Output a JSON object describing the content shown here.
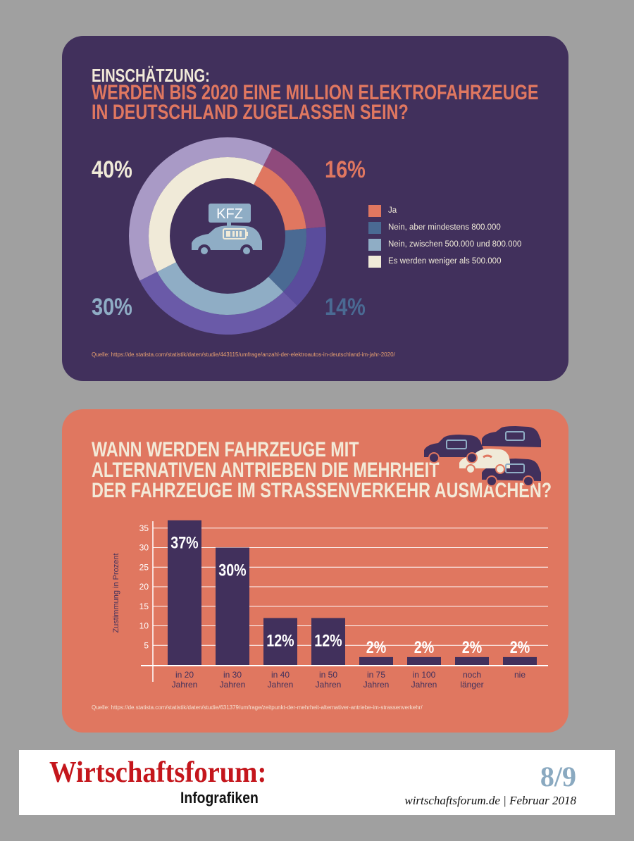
{
  "top_card": {
    "kicker": "Einschätzung:",
    "question_line1": "Werden bis 2020 eine Million Elektrofahrzeuge",
    "question_line2": "in Deutschland zugelassen sein?",
    "center_badge": "KFZ",
    "source": "Quelle: https://de.statista.com/statistik/daten/studie/443115/umfrage/anzahl-der-elektroautos-in-deutschland-im-jahr-2020/"
  },
  "bottom_card": {
    "question_line1": "Wann werden Fahrzeuge mit",
    "question_line2": "alternativen Antrieben die Mehrheit",
    "question_line3": "der Fahrzeuge im Strassenverkehr ausmachen?",
    "source": "Quelle: https://de.statista.com/statistik/daten/studie/631379/umfrage/zeitpunkt-der-mehrheit-alternativer-antriebe-im-strassenverkehr/"
  },
  "footer": {
    "brand": "Wirtschaftsforum:",
    "subtitle": "Infografiken",
    "page": "8/9",
    "site": "wirtschaftsforum.de | Februar 2018"
  },
  "colors": {
    "top_bg": "#41305c",
    "bottom_bg": "#e07760",
    "slice_ja": "#e07760",
    "slice_800k": "#4a6a93",
    "slice_500_800k": "#8fadc5",
    "slice_less_500k": "#f0ead8",
    "bar": "#41305c"
  },
  "chart_data": [
    {
      "type": "pie",
      "labels": [
        "Ja",
        "Nein, aber mindestens 800.000",
        "Nein, zwischen 500.000 und 800.000",
        "Es werden weniger als 500.000"
      ],
      "values": [
        16,
        14,
        30,
        40
      ],
      "value_labels": [
        "16%",
        "14%",
        "30%",
        "40%"
      ],
      "legend_placement": "right"
    },
    {
      "type": "bar",
      "categories": [
        [
          "in 20",
          "Jahren"
        ],
        [
          "in 30",
          "Jahren"
        ],
        [
          "in 40",
          "Jahren"
        ],
        [
          "in 50",
          "Jahren"
        ],
        [
          "in 75",
          "Jahren"
        ],
        [
          "in 100",
          "Jahren"
        ],
        [
          "noch",
          "länger"
        ],
        [
          "nie"
        ]
      ],
      "values": [
        37,
        30,
        12,
        12,
        2,
        2,
        2,
        2
      ],
      "value_labels": [
        "37%",
        "30%",
        "12%",
        "12%",
        "2%",
        "2%",
        "2%",
        "2%"
      ],
      "ylabel": "Zustimmung in Prozent",
      "yticks": [
        5,
        10,
        15,
        20,
        25,
        30,
        35
      ],
      "ylim": [
        0,
        38
      ],
      "grid": true
    }
  ]
}
